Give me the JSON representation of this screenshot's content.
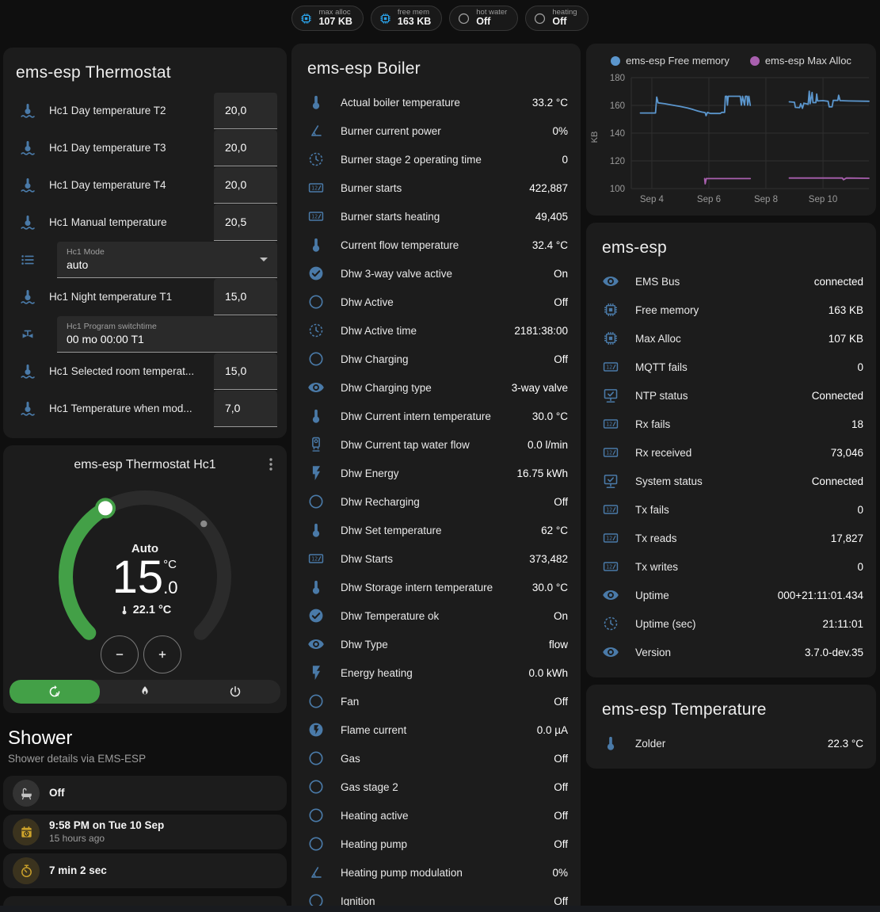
{
  "header_chips": [
    {
      "id": "max-alloc",
      "icon": "memory",
      "icon_color": "#2ba3ea",
      "label": "max alloc",
      "value": "107 KB"
    },
    {
      "id": "free-mem",
      "icon": "memory",
      "icon_color": "#2ba3ea",
      "label": "free mem",
      "value": "163 KB"
    },
    {
      "id": "hot-water",
      "icon": "circle-outline",
      "icon_color": "#9e9e9e",
      "label": "hot water",
      "value": "Off"
    },
    {
      "id": "heating",
      "icon": "circle-outline",
      "icon_color": "#9e9e9e",
      "label": "heating",
      "value": "Off"
    }
  ],
  "thermostat_card": {
    "title": "ems-esp Thermostat",
    "rows": [
      {
        "type": "number",
        "icon": "thermometer-water",
        "label": "Hc1 Day temperature T2",
        "value": "20,0"
      },
      {
        "type": "number",
        "icon": "thermometer-water",
        "label": "Hc1 Day temperature T3",
        "value": "20,0"
      },
      {
        "type": "number",
        "icon": "thermometer-water",
        "label": "Hc1 Day temperature T4",
        "value": "20,0"
      },
      {
        "type": "number",
        "icon": "thermometer-water",
        "label": "Hc1 Manual temperature",
        "value": "20,5"
      },
      {
        "type": "select",
        "icon": "format-list",
        "label": "Hc1 Mode",
        "value": "auto"
      },
      {
        "type": "number",
        "icon": "thermometer-water",
        "label": "Hc1 Night temperature T1",
        "value": "15,0"
      },
      {
        "type": "text",
        "icon": "pipe-valve",
        "label": "Hc1 Program switchtime",
        "value": "00 mo 00:00 T1"
      },
      {
        "type": "number",
        "icon": "thermometer-water",
        "label": "Hc1 Selected room temperat...",
        "value": "15,0"
      },
      {
        "type": "number",
        "icon": "thermometer-water",
        "label": "Hc1 Temperature when mod...",
        "value": "7,0"
      }
    ]
  },
  "dial_card": {
    "title": "ems-esp Thermostat Hc1",
    "mode_label": "Auto",
    "temp_int": "15",
    "temp_frac": ".0",
    "temp_unit": "°C",
    "current_temp": "22.1 °C",
    "modes": [
      {
        "id": "auto",
        "icon": "thermostat-auto",
        "selected": true
      },
      {
        "id": "heat",
        "icon": "fire",
        "selected": false
      },
      {
        "id": "off",
        "icon": "power",
        "selected": false
      }
    ],
    "accent_green": "#43a047"
  },
  "shower_section": {
    "title": "Shower",
    "subtitle": "Shower details via EMS-ESP",
    "tiles": [
      {
        "icon": "bathtub",
        "color": "gray",
        "primary": "Off",
        "secondary": ""
      },
      {
        "icon": "calendar-clock",
        "color": "amber",
        "primary": "9:58 PM on Tue 10 Sep",
        "secondary": "15 hours ago"
      },
      {
        "icon": "timer",
        "color": "amber",
        "primary": "7 min 2 sec",
        "secondary": ""
      },
      {
        "icon": "snowflake-alert",
        "color": "blue",
        "primary": "",
        "secondary": "",
        "centered": true
      }
    ]
  },
  "boiler_card": {
    "title": "ems-esp Boiler",
    "rows": [
      {
        "icon": "thermometer",
        "label": "Actual boiler temperature",
        "value": "33.2 °C"
      },
      {
        "icon": "angle-acute",
        "label": "Burner current power",
        "value": "0%"
      },
      {
        "icon": "clock",
        "label": "Burner stage 2 operating time",
        "value": "0"
      },
      {
        "icon": "counter",
        "label": "Burner starts",
        "value": "422,887"
      },
      {
        "icon": "counter",
        "label": "Burner starts heating",
        "value": "49,405"
      },
      {
        "icon": "thermometer",
        "label": "Current flow temperature",
        "value": "32.4 °C"
      },
      {
        "icon": "check-circle",
        "label": "Dhw 3-way valve active",
        "value": "On"
      },
      {
        "icon": "circle-outline",
        "label": "Dhw Active",
        "value": "Off"
      },
      {
        "icon": "clock",
        "label": "Dhw Active time",
        "value": "2181:38:00"
      },
      {
        "icon": "circle-outline",
        "label": "Dhw Charging",
        "value": "Off"
      },
      {
        "icon": "eye",
        "label": "Dhw Charging type",
        "value": "3-way valve"
      },
      {
        "icon": "thermometer",
        "label": "Dhw Current intern temperature",
        "value": "30.0 °C"
      },
      {
        "icon": "water-heater",
        "label": "Dhw Current tap water flow",
        "value": "0.0 l/min"
      },
      {
        "icon": "flash",
        "label": "Dhw Energy",
        "value": "16.75 kWh"
      },
      {
        "icon": "circle-outline",
        "label": "Dhw Recharging",
        "value": "Off"
      },
      {
        "icon": "thermometer",
        "label": "Dhw Set temperature",
        "value": "62 °C"
      },
      {
        "icon": "counter",
        "label": "Dhw Starts",
        "value": "373,482"
      },
      {
        "icon": "thermometer",
        "label": "Dhw Storage intern temperature",
        "value": "30.0 °C"
      },
      {
        "icon": "check-circle",
        "label": "Dhw Temperature ok",
        "value": "On"
      },
      {
        "icon": "eye",
        "label": "Dhw Type",
        "value": "flow"
      },
      {
        "icon": "flash",
        "label": "Energy heating",
        "value": "0.0 kWh"
      },
      {
        "icon": "circle-outline",
        "label": "Fan",
        "value": "Off"
      },
      {
        "icon": "flash-circle",
        "label": "Flame current",
        "value": "0.0 µA"
      },
      {
        "icon": "circle-outline",
        "label": "Gas",
        "value": "Off"
      },
      {
        "icon": "circle-outline",
        "label": "Gas stage 2",
        "value": "Off"
      },
      {
        "icon": "circle-outline",
        "label": "Heating active",
        "value": "Off"
      },
      {
        "icon": "circle-outline",
        "label": "Heating pump",
        "value": "Off"
      },
      {
        "icon": "angle-acute",
        "label": "Heating pump modulation",
        "value": "0%"
      },
      {
        "icon": "circle-outline",
        "label": "Ignition",
        "value": "Off"
      }
    ]
  },
  "emsesp_card": {
    "title": "ems-esp",
    "rows": [
      {
        "icon": "eye",
        "label": "EMS Bus",
        "value": "connected"
      },
      {
        "icon": "memory",
        "label": "Free memory",
        "value": "163 KB"
      },
      {
        "icon": "memory",
        "label": "Max Alloc",
        "value": "107 KB"
      },
      {
        "icon": "counter",
        "label": "MQTT fails",
        "value": "0"
      },
      {
        "icon": "network",
        "label": "NTP status",
        "value": "Connected"
      },
      {
        "icon": "counter",
        "label": "Rx fails",
        "value": "18"
      },
      {
        "icon": "counter",
        "label": "Rx received",
        "value": "73,046"
      },
      {
        "icon": "network",
        "label": "System status",
        "value": "Connected"
      },
      {
        "icon": "counter",
        "label": "Tx fails",
        "value": "0"
      },
      {
        "icon": "counter",
        "label": "Tx reads",
        "value": "17,827"
      },
      {
        "icon": "counter",
        "label": "Tx writes",
        "value": "0"
      },
      {
        "icon": "eye",
        "label": "Uptime",
        "value": "000+21:11:01.434"
      },
      {
        "icon": "clock",
        "label": "Uptime (sec)",
        "value": "21:11:01"
      },
      {
        "icon": "eye",
        "label": "Version",
        "value": "3.7.0-dev.35"
      }
    ]
  },
  "temperature_card": {
    "title": "ems-esp Temperature",
    "rows": [
      {
        "icon": "thermometer",
        "label": "Zolder",
        "value": "22.3 °C"
      }
    ]
  },
  "chart_data": {
    "type": "line",
    "ylabel": "KB",
    "yticks": [
      100,
      120,
      140,
      160,
      180
    ],
    "xticks": [
      {
        "v": 4,
        "label": "Sep 4"
      },
      {
        "v": 6,
        "label": "Sep 6"
      },
      {
        "v": 8,
        "label": "Sep 8"
      },
      {
        "v": 10,
        "label": "Sep 10"
      }
    ],
    "xlim": [
      3.28,
      11.61
    ],
    "ylim": [
      100,
      180
    ],
    "grid": true,
    "legend_position": "top",
    "series": [
      {
        "name": "ems-esp Free memory",
        "color": "#5b96cd",
        "unit": "KB",
        "segments": [
          [
            [
              3.6,
              154.5
            ],
            [
              4.13,
              154.5
            ],
            [
              4.17,
              166
            ],
            [
              4.22,
              161.8
            ],
            [
              4.45,
              161.2
            ],
            [
              4.7,
              160.3
            ],
            [
              5.0,
              159.2
            ],
            [
              5.25,
              158.2
            ],
            [
              5.45,
              157
            ],
            [
              5.6,
              156
            ],
            [
              5.75,
              155.2
            ],
            [
              5.87,
              154.8
            ],
            [
              5.9,
              152.6
            ],
            [
              5.95,
              154.9
            ],
            [
              6.05,
              154.2
            ],
            [
              6.4,
              154.2
            ],
            [
              6.45,
              155
            ],
            [
              6.55,
              155
            ],
            [
              6.58,
              166.6
            ],
            [
              6.63,
              166.6
            ],
            [
              6.65,
              160.2
            ],
            [
              6.68,
              166.6
            ],
            [
              7.1,
              166.6
            ],
            [
              7.14,
              160.2
            ],
            [
              7.18,
              166.6
            ],
            [
              7.25,
              160.2
            ],
            [
              7.28,
              166.6
            ],
            [
              7.34,
              166.6
            ],
            [
              7.36,
              160.2
            ],
            [
              7.4,
              166.6
            ],
            [
              7.45,
              160
            ]
          ],
          [
            [
              8.82,
              162.6
            ],
            [
              9.0,
              162.3
            ],
            [
              9.03,
              158.6
            ],
            [
              9.18,
              158.4
            ],
            [
              9.22,
              161.2
            ],
            [
              9.28,
              157.9
            ],
            [
              9.33,
              161.6
            ],
            [
              9.48,
              160.8
            ],
            [
              9.52,
              170.2
            ],
            [
              9.55,
              161.2
            ],
            [
              9.62,
              169.3
            ],
            [
              9.65,
              162
            ],
            [
              9.75,
              162
            ],
            [
              9.78,
              168.2
            ],
            [
              9.81,
              163.2
            ],
            [
              10.0,
              163.4
            ],
            [
              10.18,
              163
            ],
            [
              10.22,
              158.9
            ],
            [
              10.32,
              158.9
            ],
            [
              10.36,
              163.6
            ],
            [
              10.52,
              163.6
            ],
            [
              10.55,
              167.3
            ],
            [
              10.6,
              163.4
            ],
            [
              10.9,
              163.2
            ],
            [
              11.61,
              163
            ]
          ]
        ]
      },
      {
        "name": "ems-esp Max Alloc",
        "color": "#a85fae",
        "unit": "KB",
        "segments": [
          [
            [
              5.85,
              107.2
            ],
            [
              5.87,
              103.4
            ],
            [
              5.91,
              107.2
            ],
            [
              7.45,
              107.2
            ]
          ],
          [
            [
              8.82,
              107.6
            ],
            [
              10.68,
              107.6
            ],
            [
              10.72,
              106.4
            ],
            [
              10.82,
              107.6
            ],
            [
              11.61,
              107.4
            ]
          ]
        ]
      }
    ]
  }
}
